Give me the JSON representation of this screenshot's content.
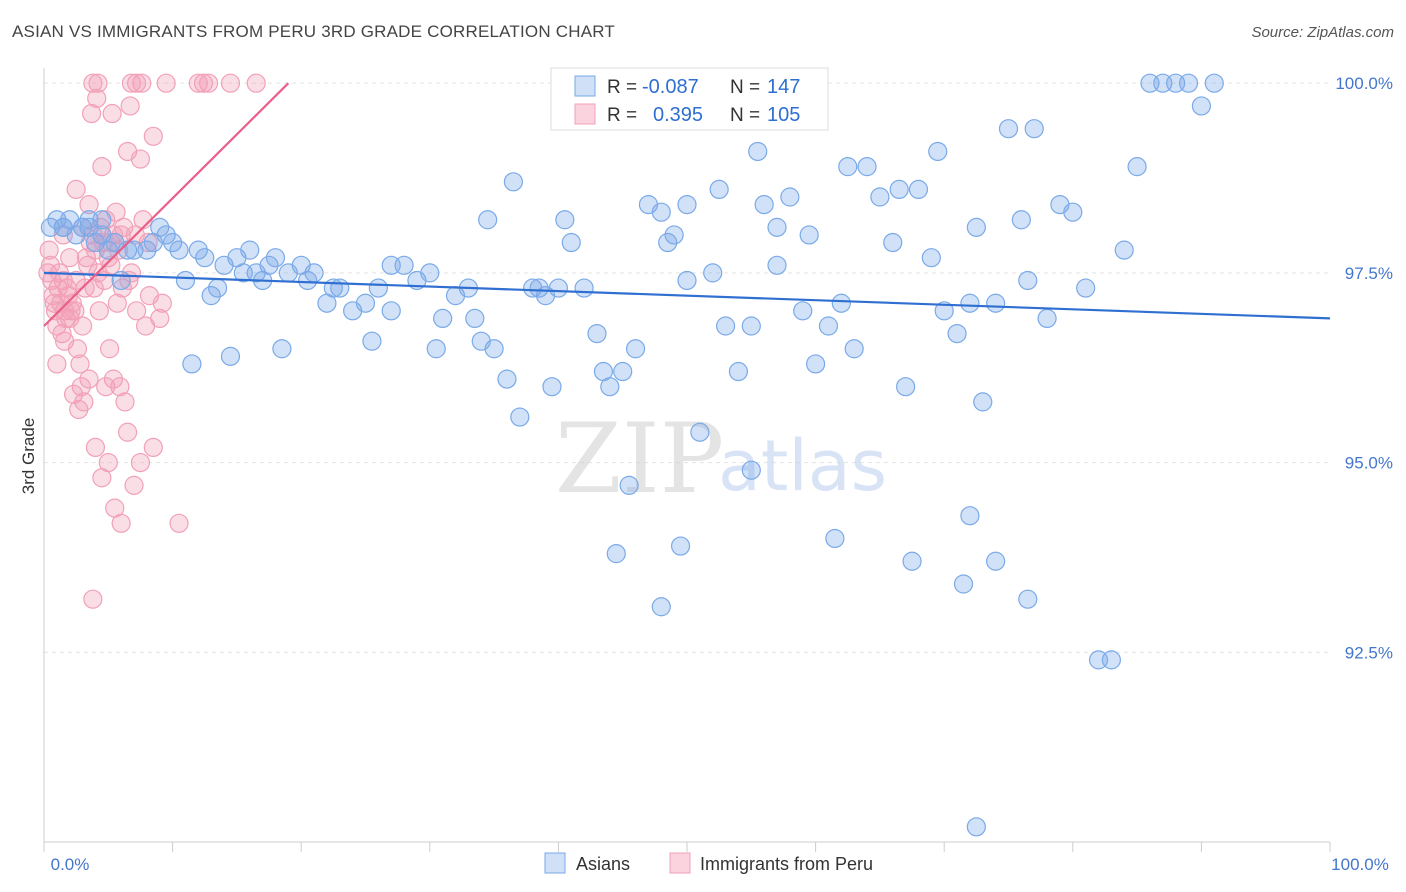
{
  "header": {
    "title": "ASIAN VS IMMIGRANTS FROM PERU 3RD GRADE CORRELATION CHART",
    "source": "Source: ZipAtlas.com"
  },
  "colors": {
    "asians": "#7aaae8",
    "asians_line": "#2f6fd1",
    "peru": "#f2a0b8",
    "peru_line": "#e8608a",
    "grid": "#e3e3e3",
    "tick_text": "#4477cc"
  },
  "legend": {
    "r_label": "R =",
    "n_label": "N =",
    "asians_r": "-0.087",
    "asians_n": "147",
    "peru_r": "0.395",
    "peru_n": "105"
  },
  "watermark": {
    "zip": "ZIP",
    "atlas": "atlas"
  },
  "chart_data": {
    "type": "scatter",
    "ylabel": "3rd Grade",
    "x_range": [
      0,
      100
    ],
    "y_range": [
      90.0,
      100.2
    ],
    "x_tick_labels": [
      "0.0%",
      "100.0%"
    ],
    "y_ticks": [
      {
        "value": 100.0,
        "label": "100.0%"
      },
      {
        "value": 97.5,
        "label": "97.5%"
      },
      {
        "value": 95.0,
        "label": "95.0%"
      },
      {
        "value": 92.5,
        "label": "92.5%"
      }
    ],
    "grid": true,
    "legend_position": "top-center",
    "series": [
      {
        "name": "Asians",
        "trend": [
          [
            0,
            97.5
          ],
          [
            100,
            96.9
          ]
        ],
        "points": [
          [
            0.5,
            98.1
          ],
          [
            1.0,
            98.2
          ],
          [
            1.5,
            98.1
          ],
          [
            2.0,
            98.2
          ],
          [
            2.5,
            98.0
          ],
          [
            3.0,
            98.1
          ],
          [
            3.5,
            98.2
          ],
          [
            4.0,
            97.9
          ],
          [
            4.5,
            98.0
          ],
          [
            5.0,
            97.8
          ],
          [
            5.5,
            97.9
          ],
          [
            6.0,
            97.4
          ],
          [
            7.0,
            97.8
          ],
          [
            8.0,
            97.8
          ],
          [
            9.0,
            98.1
          ],
          [
            9.5,
            98.0
          ],
          [
            10.0,
            97.9
          ],
          [
            11.0,
            97.4
          ],
          [
            12.0,
            97.8
          ],
          [
            12.5,
            97.7
          ],
          [
            13.0,
            97.2
          ],
          [
            13.5,
            97.3
          ],
          [
            14.0,
            97.6
          ],
          [
            15.0,
            97.7
          ],
          [
            16.0,
            97.8
          ],
          [
            16.5,
            97.5
          ],
          [
            17.0,
            97.4
          ],
          [
            17.5,
            97.6
          ],
          [
            18.0,
            97.7
          ],
          [
            19.0,
            97.5
          ],
          [
            20.0,
            97.6
          ],
          [
            21.0,
            97.5
          ],
          [
            22.0,
            97.1
          ],
          [
            23.0,
            97.3
          ],
          [
            24.0,
            97.0
          ],
          [
            25.0,
            97.1
          ],
          [
            26.0,
            97.3
          ],
          [
            27.0,
            97.0
          ],
          [
            28.0,
            97.6
          ],
          [
            29.0,
            97.4
          ],
          [
            30.0,
            97.5
          ],
          [
            31.0,
            96.9
          ],
          [
            32.0,
            97.2
          ],
          [
            33.0,
            97.3
          ],
          [
            34.0,
            96.6
          ],
          [
            35.0,
            96.5
          ],
          [
            36.0,
            96.1
          ],
          [
            37.0,
            95.6
          ],
          [
            38.0,
            97.3
          ],
          [
            39.0,
            97.2
          ],
          [
            40.0,
            97.3
          ],
          [
            41.0,
            97.9
          ],
          [
            42.0,
            97.3
          ],
          [
            43.0,
            96.7
          ],
          [
            44.0,
            96.0
          ],
          [
            45.0,
            96.2
          ],
          [
            46.0,
            96.5
          ],
          [
            47.0,
            98.4
          ],
          [
            48.0,
            98.3
          ],
          [
            49.0,
            98.0
          ],
          [
            50.0,
            97.4
          ],
          [
            51.0,
            95.4
          ],
          [
            52.0,
            97.5
          ],
          [
            53.0,
            96.8
          ],
          [
            54.0,
            96.2
          ],
          [
            55.0,
            96.8
          ],
          [
            56.0,
            98.4
          ],
          [
            57.0,
            98.1
          ],
          [
            58.0,
            98.5
          ],
          [
            59.0,
            97.0
          ],
          [
            60.0,
            96.3
          ],
          [
            61.0,
            96.8
          ],
          [
            62.0,
            97.1
          ],
          [
            63.0,
            96.5
          ],
          [
            64.0,
            98.9
          ],
          [
            65.0,
            98.5
          ],
          [
            66.0,
            97.9
          ],
          [
            67.0,
            96.0
          ],
          [
            68.0,
            98.6
          ],
          [
            69.0,
            97.7
          ],
          [
            70.0,
            97.0
          ],
          [
            71.0,
            96.7
          ],
          [
            72.0,
            97.1
          ],
          [
            73.0,
            95.8
          ],
          [
            74.0,
            97.1
          ],
          [
            75.0,
            99.4
          ],
          [
            76.0,
            98.2
          ],
          [
            77.0,
            99.4
          ],
          [
            78.0,
            96.9
          ],
          [
            79.0,
            98.4
          ],
          [
            80.0,
            98.3
          ],
          [
            81.0,
            97.3
          ],
          [
            82.0,
            92.4
          ],
          [
            83.0,
            92.4
          ],
          [
            84.0,
            97.8
          ],
          [
            85.0,
            98.9
          ],
          [
            86.0,
            100.0
          ],
          [
            87.0,
            100.0
          ],
          [
            88.0,
            100.0
          ],
          [
            89.0,
            100.0
          ],
          [
            90.0,
            99.7
          ],
          [
            91.0,
            100.0
          ],
          [
            36.5,
            98.7
          ],
          [
            34.5,
            98.2
          ],
          [
            40.5,
            98.2
          ],
          [
            45.5,
            94.7
          ],
          [
            48.5,
            97.9
          ],
          [
            52.5,
            98.6
          ],
          [
            55.5,
            99.1
          ],
          [
            59.5,
            98.0
          ],
          [
            62.5,
            98.9
          ],
          [
            66.5,
            98.6
          ],
          [
            69.5,
            99.1
          ],
          [
            72.5,
            98.1
          ],
          [
            76.5,
            97.4
          ],
          [
            44.5,
            93.8
          ],
          [
            49.5,
            93.9
          ],
          [
            55.0,
            94.9
          ],
          [
            61.5,
            94.0
          ],
          [
            67.5,
            93.7
          ],
          [
            71.5,
            93.4
          ],
          [
            74.0,
            93.7
          ],
          [
            72.0,
            94.3
          ],
          [
            76.5,
            93.2
          ],
          [
            48.0,
            93.1
          ],
          [
            72.5,
            90.2
          ],
          [
            11.5,
            96.3
          ],
          [
            14.5,
            96.4
          ],
          [
            18.5,
            96.5
          ],
          [
            25.5,
            96.6
          ],
          [
            39.5,
            96.0
          ],
          [
            43.5,
            96.2
          ],
          [
            50.0,
            98.4
          ],
          [
            57.0,
            97.6
          ],
          [
            30.5,
            96.5
          ],
          [
            6.5,
            97.8
          ],
          [
            8.5,
            97.9
          ],
          [
            3.5,
            98.1
          ],
          [
            4.5,
            98.2
          ],
          [
            1.5,
            98.1
          ],
          [
            10.5,
            97.8
          ],
          [
            15.5,
            97.5
          ],
          [
            20.5,
            97.4
          ],
          [
            27.0,
            97.6
          ],
          [
            22.5,
            97.3
          ],
          [
            33.5,
            96.9
          ],
          [
            38.5,
            97.3
          ]
        ]
      },
      {
        "name": "Immigrants from Peru",
        "trend": [
          [
            0,
            96.8
          ],
          [
            19,
            100.0
          ]
        ],
        "points": [
          [
            0.3,
            97.5
          ],
          [
            0.5,
            97.6
          ],
          [
            0.7,
            97.2
          ],
          [
            0.9,
            97.0
          ],
          [
            1.1,
            97.3
          ],
          [
            1.3,
            97.1
          ],
          [
            1.5,
            97.4
          ],
          [
            1.7,
            96.9
          ],
          [
            1.9,
            97.2
          ],
          [
            2.1,
            97.0
          ],
          [
            0.4,
            97.8
          ],
          [
            0.6,
            97.4
          ],
          [
            0.8,
            97.1
          ],
          [
            1.0,
            96.8
          ],
          [
            1.2,
            97.5
          ],
          [
            1.4,
            96.7
          ],
          [
            1.6,
            97.0
          ],
          [
            1.8,
            97.3
          ],
          [
            2.0,
            96.9
          ],
          [
            2.2,
            97.1
          ],
          [
            2.4,
            97.0
          ],
          [
            2.6,
            96.5
          ],
          [
            2.8,
            96.3
          ],
          [
            3.0,
            96.8
          ],
          [
            3.2,
            97.3
          ],
          [
            3.4,
            97.6
          ],
          [
            3.6,
            97.9
          ],
          [
            3.8,
            98.0
          ],
          [
            4.0,
            97.8
          ],
          [
            4.2,
            97.5
          ],
          [
            4.4,
            98.1
          ],
          [
            4.6,
            97.9
          ],
          [
            4.8,
            98.2
          ],
          [
            5.0,
            97.7
          ],
          [
            5.2,
            97.9
          ],
          [
            5.4,
            98.0
          ],
          [
            5.6,
            98.3
          ],
          [
            5.8,
            97.8
          ],
          [
            6.0,
            98.0
          ],
          [
            6.2,
            98.1
          ],
          [
            2.5,
            98.6
          ],
          [
            3.5,
            98.4
          ],
          [
            4.5,
            98.9
          ],
          [
            6.5,
            99.1
          ],
          [
            7.5,
            99.0
          ],
          [
            8.5,
            99.3
          ],
          [
            3.7,
            99.6
          ],
          [
            4.1,
            99.8
          ],
          [
            5.3,
            99.6
          ],
          [
            6.7,
            99.7
          ],
          [
            3.8,
            100.0
          ],
          [
            4.2,
            100.0
          ],
          [
            6.8,
            100.0
          ],
          [
            7.2,
            100.0
          ],
          [
            7.6,
            100.0
          ],
          [
            9.5,
            100.0
          ],
          [
            12.0,
            100.0
          ],
          [
            12.4,
            100.0
          ],
          [
            12.8,
            100.0
          ],
          [
            14.5,
            100.0
          ],
          [
            16.5,
            100.0
          ],
          [
            2.3,
            95.9
          ],
          [
            2.7,
            95.7
          ],
          [
            3.1,
            95.8
          ],
          [
            3.5,
            96.1
          ],
          [
            4.0,
            95.2
          ],
          [
            4.5,
            94.8
          ],
          [
            5.0,
            95.0
          ],
          [
            5.5,
            94.4
          ],
          [
            6.0,
            94.2
          ],
          [
            6.5,
            95.4
          ],
          [
            7.0,
            94.7
          ],
          [
            7.5,
            95.0
          ],
          [
            8.5,
            95.2
          ],
          [
            10.5,
            94.2
          ],
          [
            3.8,
            93.2
          ],
          [
            4.8,
            96.0
          ],
          [
            5.4,
            96.1
          ],
          [
            5.9,
            96.0
          ],
          [
            6.3,
            95.8
          ],
          [
            7.2,
            97.0
          ],
          [
            8.2,
            97.2
          ],
          [
            9.2,
            97.1
          ],
          [
            6.8,
            97.5
          ],
          [
            7.9,
            96.8
          ],
          [
            9.0,
            96.9
          ],
          [
            5.1,
            96.5
          ],
          [
            2.9,
            96.0
          ],
          [
            1.6,
            96.6
          ],
          [
            1.0,
            96.3
          ],
          [
            1.5,
            98.0
          ],
          [
            2.0,
            97.7
          ],
          [
            2.5,
            97.4
          ],
          [
            3.0,
            98.1
          ],
          [
            3.3,
            97.7
          ],
          [
            3.9,
            97.3
          ],
          [
            4.3,
            97.0
          ],
          [
            4.7,
            97.4
          ],
          [
            5.2,
            97.6
          ],
          [
            5.7,
            97.1
          ],
          [
            6.1,
            97.3
          ],
          [
            6.6,
            97.4
          ],
          [
            7.1,
            98.0
          ],
          [
            7.7,
            98.2
          ],
          [
            8.1,
            97.9
          ]
        ]
      }
    ]
  },
  "bottom_legend": {
    "asians": "Asians",
    "peru": "Immigrants from Peru"
  }
}
